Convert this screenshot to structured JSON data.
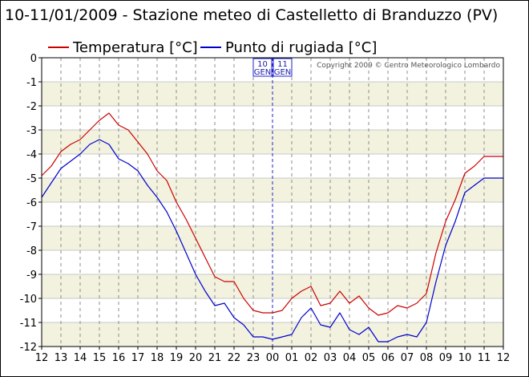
{
  "chart_data": {
    "type": "line",
    "title": "10-11/01/2009 - Stazione meteo di Castelletto di Branduzzo (PV)",
    "xlabel": "",
    "ylabel": "",
    "ylim": [
      -12,
      0
    ],
    "yticks": [
      "0",
      "-1",
      "-2",
      "-3",
      "-4",
      "-5",
      "-6",
      "-7",
      "-8",
      "-9",
      "-10",
      "-11",
      "-12"
    ],
    "xticks": [
      "12",
      "13",
      "14",
      "15",
      "16",
      "17",
      "18",
      "19",
      "20",
      "21",
      "22",
      "23",
      "00",
      "01",
      "02",
      "03",
      "04",
      "05",
      "06",
      "07",
      "08",
      "09",
      "10",
      "11",
      "12"
    ],
    "grid": true,
    "legend_position": "top-left",
    "day_markers": [
      {
        "date": "10",
        "month": "GEN"
      },
      {
        "date": "11",
        "month": "GEN"
      }
    ],
    "midnight_index": 12,
    "copyright": "Copyright 2009 © Centro Meteorologico Lombardo",
    "series": [
      {
        "name": "Temperatura [°C]",
        "color": "#cc0000",
        "hours": [
          0,
          0.5,
          1,
          1.5,
          2,
          2.5,
          3,
          3.5,
          4,
          4.5,
          5,
          5.5,
          6,
          6.5,
          7,
          7.5,
          8,
          8.5,
          9,
          9.5,
          10,
          10.5,
          11,
          11.5,
          12,
          12.5,
          13,
          13.5,
          14,
          14.5,
          15,
          15.5,
          16,
          16.5,
          17,
          17.5,
          18,
          18.5,
          19,
          19.5,
          20,
          20.5,
          21,
          21.5,
          22,
          22.5,
          23,
          23.5,
          24
        ],
        "values": [
          -4.9,
          -4.5,
          -3.9,
          -3.6,
          -3.4,
          -3.0,
          -2.6,
          -2.3,
          -2.8,
          -3.0,
          -3.5,
          -4.0,
          -4.7,
          -5.1,
          -6.0,
          -6.7,
          -7.5,
          -8.3,
          -9.1,
          -9.3,
          -9.3,
          -10.0,
          -10.5,
          -10.6,
          -10.6,
          -10.5,
          -10.0,
          -9.7,
          -9.5,
          -10.3,
          -10.2,
          -9.7,
          -10.2,
          -9.9,
          -10.4,
          -10.7,
          -10.6,
          -10.3,
          -10.4,
          -10.2,
          -9.8,
          -8.1,
          -6.8,
          -5.9,
          -4.8,
          -4.5,
          -4.1,
          -4.1,
          -4.1
        ]
      },
      {
        "name": "Punto di rugiada [°C]",
        "color": "#0000cc",
        "hours": [
          0,
          0.5,
          1,
          1.5,
          2,
          2.5,
          3,
          3.5,
          4,
          4.5,
          5,
          5.5,
          6,
          6.5,
          7,
          7.5,
          8,
          8.5,
          9,
          9.5,
          10,
          10.5,
          11,
          11.5,
          12,
          12.5,
          13,
          13.5,
          14,
          14.5,
          15,
          15.5,
          16,
          16.5,
          17,
          17.5,
          18,
          18.5,
          19,
          19.5,
          20,
          20.5,
          21,
          21.5,
          22,
          22.5,
          23,
          23.5,
          24
        ],
        "values": [
          -5.8,
          -5.2,
          -4.6,
          -4.3,
          -4.0,
          -3.6,
          -3.4,
          -3.6,
          -4.2,
          -4.4,
          -4.7,
          -5.3,
          -5.8,
          -6.4,
          -7.2,
          -8.1,
          -9.0,
          -9.7,
          -10.3,
          -10.2,
          -10.8,
          -11.1,
          -11.6,
          -11.6,
          -11.7,
          -11.6,
          -11.5,
          -10.8,
          -10.4,
          -11.1,
          -11.2,
          -10.6,
          -11.3,
          -11.5,
          -11.2,
          -11.8,
          -11.8,
          -11.6,
          -11.5,
          -11.6,
          -11.0,
          -9.3,
          -7.8,
          -6.8,
          -5.6,
          -5.3,
          -5.0,
          -5.0,
          -5.0
        ]
      }
    ]
  }
}
